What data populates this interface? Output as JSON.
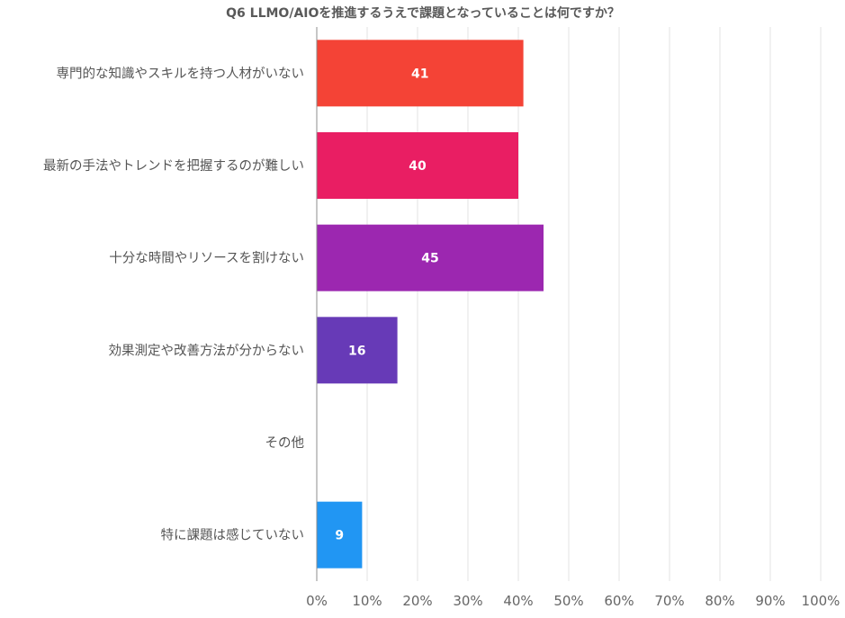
{
  "chart_data": {
    "type": "bar",
    "orientation": "horizontal",
    "title": "Q6 LLMO/AIOを推進するうえで課題となっていることは何ですか？",
    "categories": [
      "専門的な知識やスキルを持つ人材がいない",
      "最新の手法やトレンドを把握するのが難しい",
      "十分な時間やリソースを割けない",
      "効果測定や改善方法が分からない",
      "その他",
      "特に課題は感じていない"
    ],
    "values": [
      41,
      40,
      45,
      16,
      0,
      9
    ],
    "data_labels": [
      "41",
      "40",
      "45",
      "16",
      "",
      "9"
    ],
    "bar_colors": [
      "#f44336",
      "#e91e63",
      "#9c27b0",
      "#673ab7",
      "#3f51b5",
      "#2196f3"
    ],
    "xlim": [
      0,
      100
    ],
    "x_ticks": [
      0,
      10,
      20,
      30,
      40,
      50,
      60,
      70,
      80,
      90,
      100
    ],
    "x_tick_labels": [
      "0%",
      "10%",
      "20%",
      "30%",
      "40%",
      "50%",
      "60%",
      "70%",
      "80%",
      "90%",
      "100%"
    ],
    "xlabel": "",
    "ylabel": "",
    "grid": true,
    "legend": "none"
  }
}
